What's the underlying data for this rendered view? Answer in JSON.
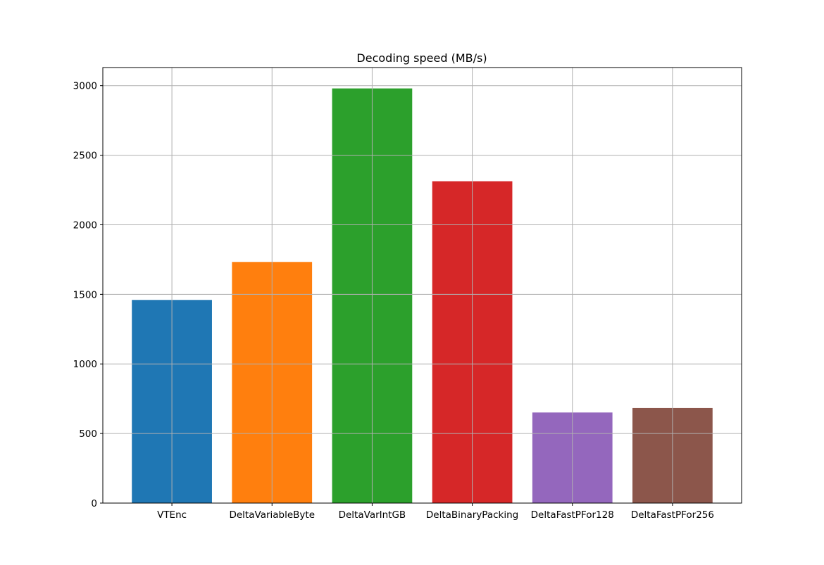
{
  "chart_data": {
    "type": "bar",
    "title": "Decoding speed (MB/s)",
    "xlabel": "",
    "ylabel": "",
    "categories": [
      "VTEnc",
      "DeltaVariableByte",
      "DeltaVarIntGB",
      "DeltaBinaryPacking",
      "DeltaFastPFor128",
      "DeltaFastPFor256"
    ],
    "values": [
      1460,
      1733,
      2980,
      2313,
      651,
      683
    ],
    "colors": [
      "#1f77b4",
      "#ff7f0e",
      "#2ca02c",
      "#d62728",
      "#9467bd",
      "#8c564b"
    ],
    "ylim": [
      0,
      3130
    ],
    "yticks": [
      0,
      500,
      1000,
      1500,
      2000,
      2500,
      3000
    ],
    "grid": true,
    "legend": "none"
  }
}
